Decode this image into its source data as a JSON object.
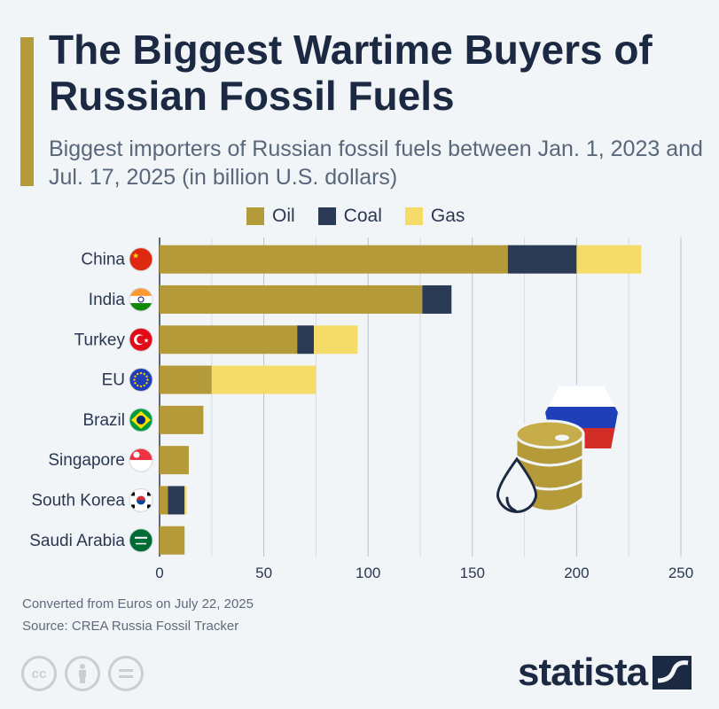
{
  "title": "The Biggest Wartime Buyers of Russian Fossil Fuels",
  "subtitle": "Biggest importers of Russian fossil fuels between Jan. 1, 2023 and Jul. 17, 2025 (in billion U.S. dollars)",
  "footer": {
    "note": "Converted from Euros on July 22, 2025",
    "source": "Source: CREA Russia Fossil Tracker",
    "brand": "statista"
  },
  "colors": {
    "oil": "#b49a38",
    "coal": "#2b3a55",
    "gas": "#f5dc68",
    "accent": "#b49a38"
  },
  "icons": [
    "cc-icon",
    "person-icon",
    "equal-icon",
    "oil-barrel-icon",
    "oil-drop-icon",
    "russia-flag-icon",
    "statista-logo-icon"
  ],
  "chart_data": {
    "type": "bar",
    "orientation": "horizontal",
    "stacked": true,
    "categories": [
      "China",
      "India",
      "Turkey",
      "EU",
      "Brazil",
      "Singapore",
      "South Korea",
      "Saudi Arabia"
    ],
    "series": [
      {
        "name": "Oil",
        "values": [
          167,
          126,
          66,
          25,
          21,
          14,
          4,
          12
        ]
      },
      {
        "name": "Coal",
        "values": [
          33,
          14,
          8,
          0,
          0,
          0,
          8,
          0
        ]
      },
      {
        "name": "Gas",
        "values": [
          31,
          0,
          21,
          50,
          0,
          0,
          1,
          0
        ]
      }
    ],
    "xlim": [
      0,
      250
    ],
    "xticks": [
      "0",
      "50",
      "100",
      "150",
      "200",
      "250"
    ],
    "grid": true,
    "legend": "top"
  }
}
